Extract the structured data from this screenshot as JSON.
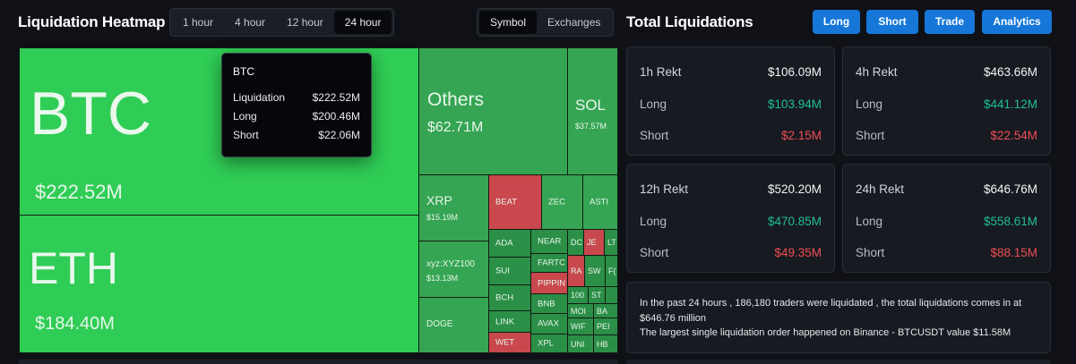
{
  "heatmap": {
    "title": "Liquidation Heatmap",
    "timeframes": [
      "1 hour",
      "4 hour",
      "12 hour",
      "24 hour"
    ],
    "active_timeframe": "24 hour",
    "modes": [
      "Symbol",
      "Exchanges"
    ],
    "active_mode": "Symbol",
    "cells": {
      "btc": {
        "symbol": "BTC",
        "value": "$222.52M"
      },
      "eth": {
        "symbol": "ETH",
        "value": "$184.40M"
      },
      "others": {
        "symbol": "Others",
        "value": "$62.71M"
      },
      "sol": {
        "symbol": "SOL",
        "value": "$37.57M"
      },
      "xrp": {
        "symbol": "XRP",
        "value": "$15.19M"
      },
      "xyz": {
        "symbol": "xyz:XYZ100",
        "value": "$13.13M"
      },
      "doge": {
        "symbol": "DOGE"
      },
      "beat": {
        "symbol": "BEAT"
      },
      "zec": {
        "symbol": "ZEC"
      },
      "aster": {
        "symbol": "ASTI"
      },
      "ada": {
        "symbol": "ADA"
      },
      "near": {
        "symbol": "NEAR"
      },
      "dc": {
        "symbol": "DC"
      },
      "je": {
        "symbol": "JE"
      },
      "lt": {
        "symbol": "LT"
      },
      "sui": {
        "symbol": "SUI"
      },
      "fartc": {
        "symbol": "FARTC"
      },
      "ra": {
        "symbol": "RA"
      },
      "sw": {
        "symbol": "SW"
      },
      "f": {
        "symbol": "F("
      },
      "pippin": {
        "symbol": "PIPPIN"
      },
      "bch": {
        "symbol": "BCH"
      },
      "c100": {
        "symbol": "100"
      },
      "st": {
        "symbol": "ST"
      },
      "bnb": {
        "symbol": "BNB"
      },
      "mo": {
        "symbol": "MOI"
      },
      "ba": {
        "symbol": "BA"
      },
      "link": {
        "symbol": "LINK"
      },
      "avax": {
        "symbol": "AVAX"
      },
      "wif": {
        "symbol": "WIF"
      },
      "pe": {
        "symbol": "PEI"
      },
      "wet": {
        "symbol": "WET"
      },
      "xpl": {
        "symbol": "XPL"
      },
      "uni": {
        "symbol": "UNI"
      },
      "hb": {
        "symbol": "HB"
      }
    },
    "tooltip": {
      "symbol": "BTC",
      "liquidation_label": "Liquidation",
      "liquidation": "$222.52M",
      "long_label": "Long",
      "long": "$200.46M",
      "short_label": "Short",
      "short": "$22.06M"
    }
  },
  "totals": {
    "title": "Total Liquidations",
    "buttons": {
      "long": "Long",
      "short": "Short",
      "trade": "Trade",
      "analytics": "Analytics"
    },
    "cards": [
      {
        "label": "1h Rekt",
        "total": "$106.09M",
        "long_label": "Long",
        "long": "$103.94M",
        "short_label": "Short",
        "short": "$2.15M"
      },
      {
        "label": "4h Rekt",
        "total": "$463.66M",
        "long_label": "Long",
        "long": "$441.12M",
        "short_label": "Short",
        "short": "$22.54M"
      },
      {
        "label": "12h Rekt",
        "total": "$520.20M",
        "long_label": "Long",
        "long": "$470.85M",
        "short_label": "Short",
        "short": "$49.35M"
      },
      {
        "label": "24h Rekt",
        "total": "$646.76M",
        "long_label": "Long",
        "long": "$558.61M",
        "short_label": "Short",
        "short": "$88.15M"
      }
    ],
    "summary_line1": "In the past 24 hours , 186,180 traders were liquidated , the total liquidations comes in at $646.76 million",
    "summary_line2": "The largest single liquidation order happened on Binance - BTCUSDT value $11.58M"
  },
  "colors": {
    "accent": "#1677d9",
    "positive": "#1fbf99",
    "negative": "#ee4e55",
    "heat_green": "#2fcd55",
    "heat_red": "#c8484d"
  }
}
